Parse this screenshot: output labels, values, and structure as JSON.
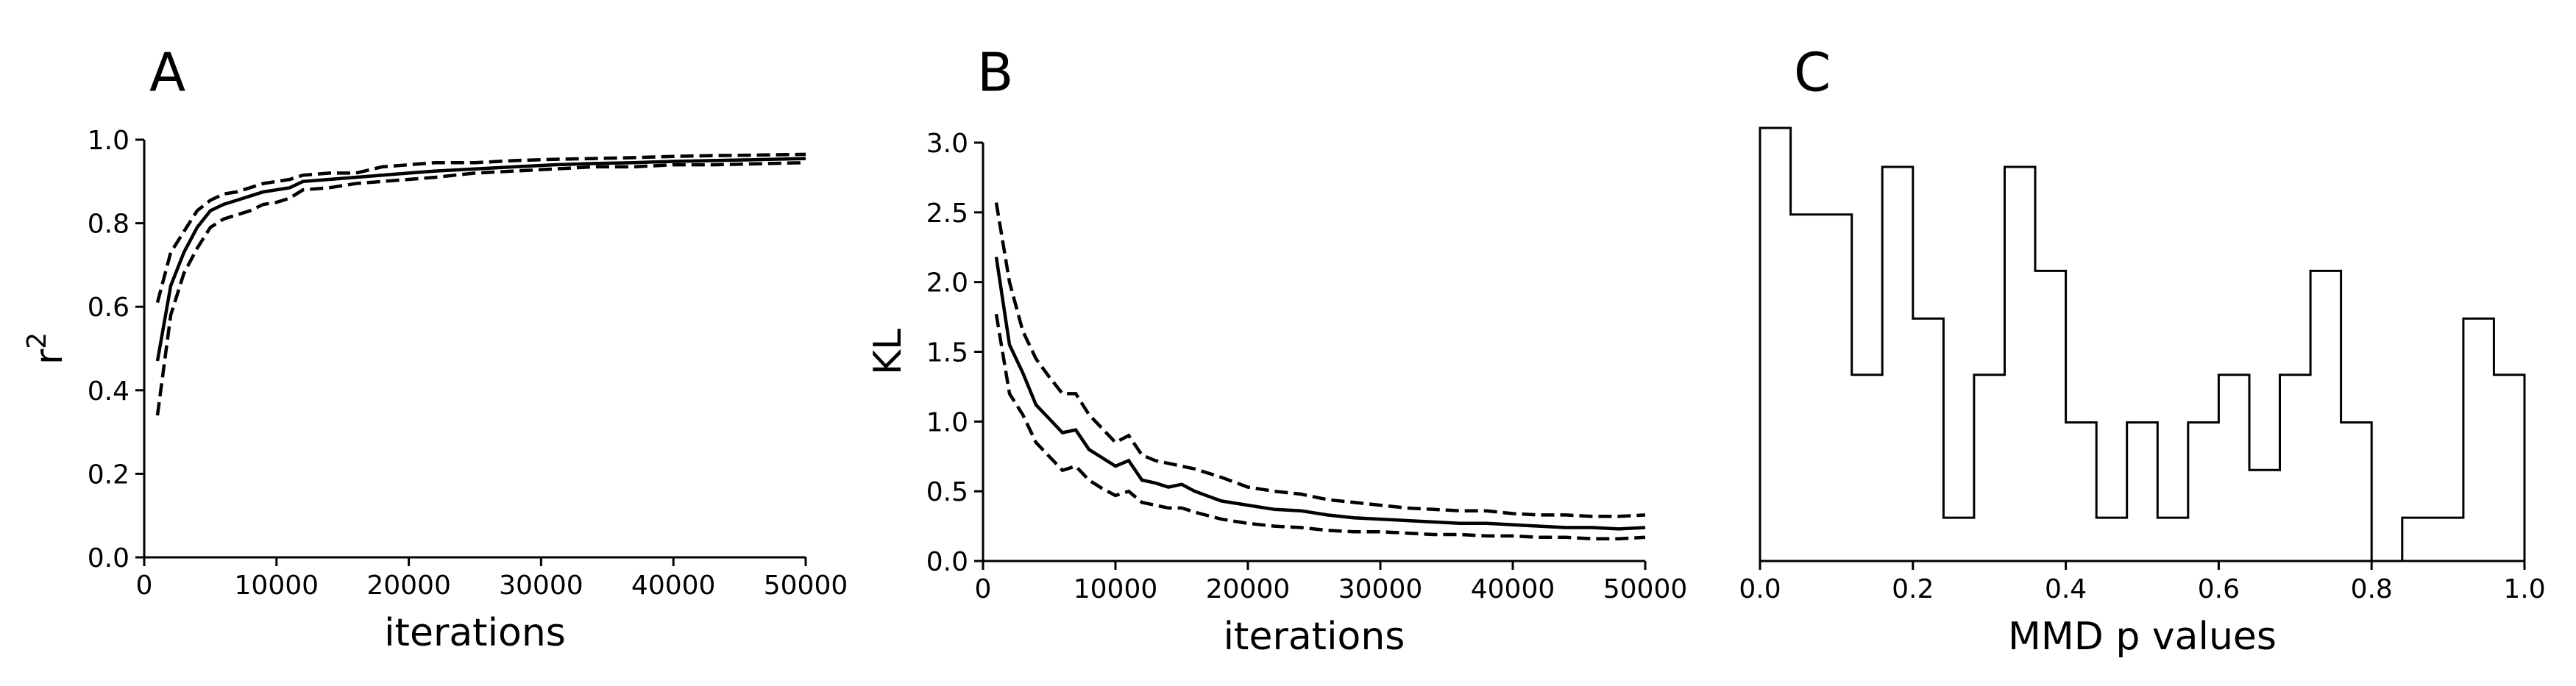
{
  "chart_data": [
    {
      "panel": "A",
      "type": "line",
      "xlabel": "iterations",
      "ylabel": "r",
      "ylabel_sup": "2",
      "xlim": [
        0,
        50000
      ],
      "ylim": [
        0.0,
        1.0
      ],
      "xticks": [
        0,
        10000,
        20000,
        30000,
        40000,
        50000
      ],
      "yticks": [
        0.0,
        0.2,
        0.4,
        0.6,
        0.8,
        1.0
      ],
      "xtick_labels": [
        "0",
        "10000",
        "20000",
        "30000",
        "40000",
        "50000"
      ],
      "ytick_labels": [
        "0.0",
        "0.2",
        "0.4",
        "0.6",
        "0.8",
        "1.0"
      ],
      "x": [
        1000,
        2000,
        3000,
        4000,
        5000,
        6000,
        7000,
        8000,
        9000,
        10000,
        11000,
        12000,
        14000,
        16000,
        18000,
        20000,
        22000,
        25000,
        28000,
        31000,
        34000,
        37000,
        40000,
        43000,
        46000,
        50000
      ],
      "series": [
        {
          "style": "solid",
          "values": [
            0.47,
            0.65,
            0.73,
            0.79,
            0.83,
            0.845,
            0.855,
            0.865,
            0.875,
            0.88,
            0.885,
            0.9,
            0.905,
            0.91,
            0.915,
            0.92,
            0.925,
            0.93,
            0.935,
            0.94,
            0.943,
            0.945,
            0.948,
            0.95,
            0.952,
            0.955
          ]
        },
        {
          "style": "dashed",
          "values": [
            0.61,
            0.73,
            0.78,
            0.83,
            0.855,
            0.87,
            0.875,
            0.885,
            0.895,
            0.9,
            0.905,
            0.915,
            0.92,
            0.92,
            0.935,
            0.94,
            0.945,
            0.945,
            0.95,
            0.953,
            0.955,
            0.957,
            0.96,
            0.962,
            0.963,
            0.965
          ]
        },
        {
          "style": "dashed",
          "values": [
            0.34,
            0.58,
            0.68,
            0.74,
            0.79,
            0.81,
            0.82,
            0.83,
            0.845,
            0.85,
            0.86,
            0.88,
            0.885,
            0.895,
            0.9,
            0.905,
            0.91,
            0.92,
            0.925,
            0.93,
            0.935,
            0.935,
            0.94,
            0.94,
            0.942,
            0.945
          ]
        }
      ]
    },
    {
      "panel": "B",
      "type": "line",
      "xlabel": "iterations",
      "ylabel": "KL",
      "xlim": [
        0,
        50000
      ],
      "ylim": [
        0.0,
        3.0
      ],
      "xticks": [
        0,
        10000,
        20000,
        30000,
        40000,
        50000
      ],
      "yticks": [
        0.0,
        0.5,
        1.0,
        1.5,
        2.0,
        2.5,
        3.0
      ],
      "xtick_labels": [
        "0",
        "10000",
        "20000",
        "30000",
        "40000",
        "50000"
      ],
      "ytick_labels": [
        "0.0",
        "0.5",
        "1.0",
        "1.5",
        "2.0",
        "2.5",
        "3.0"
      ],
      "x": [
        1000,
        2000,
        3000,
        4000,
        5000,
        6000,
        7000,
        8000,
        9000,
        10000,
        11000,
        12000,
        13000,
        14000,
        15000,
        16000,
        18000,
        20000,
        22000,
        24000,
        26000,
        28000,
        30000,
        32000,
        34000,
        36000,
        38000,
        40000,
        42000,
        44000,
        46000,
        48000,
        50000
      ],
      "series": [
        {
          "style": "solid",
          "values": [
            2.18,
            1.55,
            1.35,
            1.12,
            1.02,
            0.92,
            0.94,
            0.8,
            0.74,
            0.68,
            0.72,
            0.58,
            0.56,
            0.53,
            0.55,
            0.5,
            0.43,
            0.4,
            0.37,
            0.36,
            0.33,
            0.31,
            0.3,
            0.29,
            0.28,
            0.27,
            0.27,
            0.26,
            0.25,
            0.24,
            0.24,
            0.23,
            0.24
          ]
        },
        {
          "style": "dashed",
          "values": [
            2.57,
            2.0,
            1.65,
            1.45,
            1.32,
            1.2,
            1.2,
            1.05,
            0.95,
            0.85,
            0.9,
            0.76,
            0.72,
            0.7,
            0.68,
            0.66,
            0.6,
            0.53,
            0.5,
            0.48,
            0.44,
            0.42,
            0.4,
            0.38,
            0.37,
            0.36,
            0.36,
            0.34,
            0.33,
            0.33,
            0.32,
            0.32,
            0.33
          ]
        },
        {
          "style": "dashed",
          "values": [
            1.77,
            1.2,
            1.05,
            0.85,
            0.75,
            0.65,
            0.68,
            0.58,
            0.52,
            0.47,
            0.5,
            0.42,
            0.4,
            0.38,
            0.38,
            0.35,
            0.3,
            0.27,
            0.25,
            0.24,
            0.22,
            0.21,
            0.21,
            0.2,
            0.19,
            0.19,
            0.18,
            0.18,
            0.17,
            0.17,
            0.16,
            0.16,
            0.17
          ]
        }
      ]
    },
    {
      "panel": "C",
      "type": "histogram",
      "xlabel": "MMD p values",
      "xlim": [
        0.0,
        1.0
      ],
      "ylim": [
        0,
        1.0
      ],
      "xticks": [
        0.0,
        0.2,
        0.4,
        0.6,
        0.8,
        1.0
      ],
      "xtick_labels": [
        "0.0",
        "0.2",
        "0.4",
        "0.6",
        "0.8",
        "1.0"
      ],
      "bin_edges": [
        0.0,
        0.04,
        0.08,
        0.12,
        0.16,
        0.2,
        0.24,
        0.28,
        0.32,
        0.36,
        0.4,
        0.44,
        0.48,
        0.52,
        0.56,
        0.6,
        0.64,
        0.68,
        0.72,
        0.76,
        0.8,
        0.84,
        0.88,
        0.92,
        0.96,
        1.0
      ],
      "counts": [
        1.0,
        0.8,
        0.8,
        0.43,
        0.91,
        0.56,
        0.1,
        0.43,
        0.91,
        0.67,
        0.32,
        0.1,
        0.32,
        0.1,
        0.32,
        0.43,
        0.21,
        0.43,
        0.67,
        0.32,
        0.0,
        0.1,
        0.1,
        0.56,
        0.43
      ],
      "yticks": []
    }
  ]
}
